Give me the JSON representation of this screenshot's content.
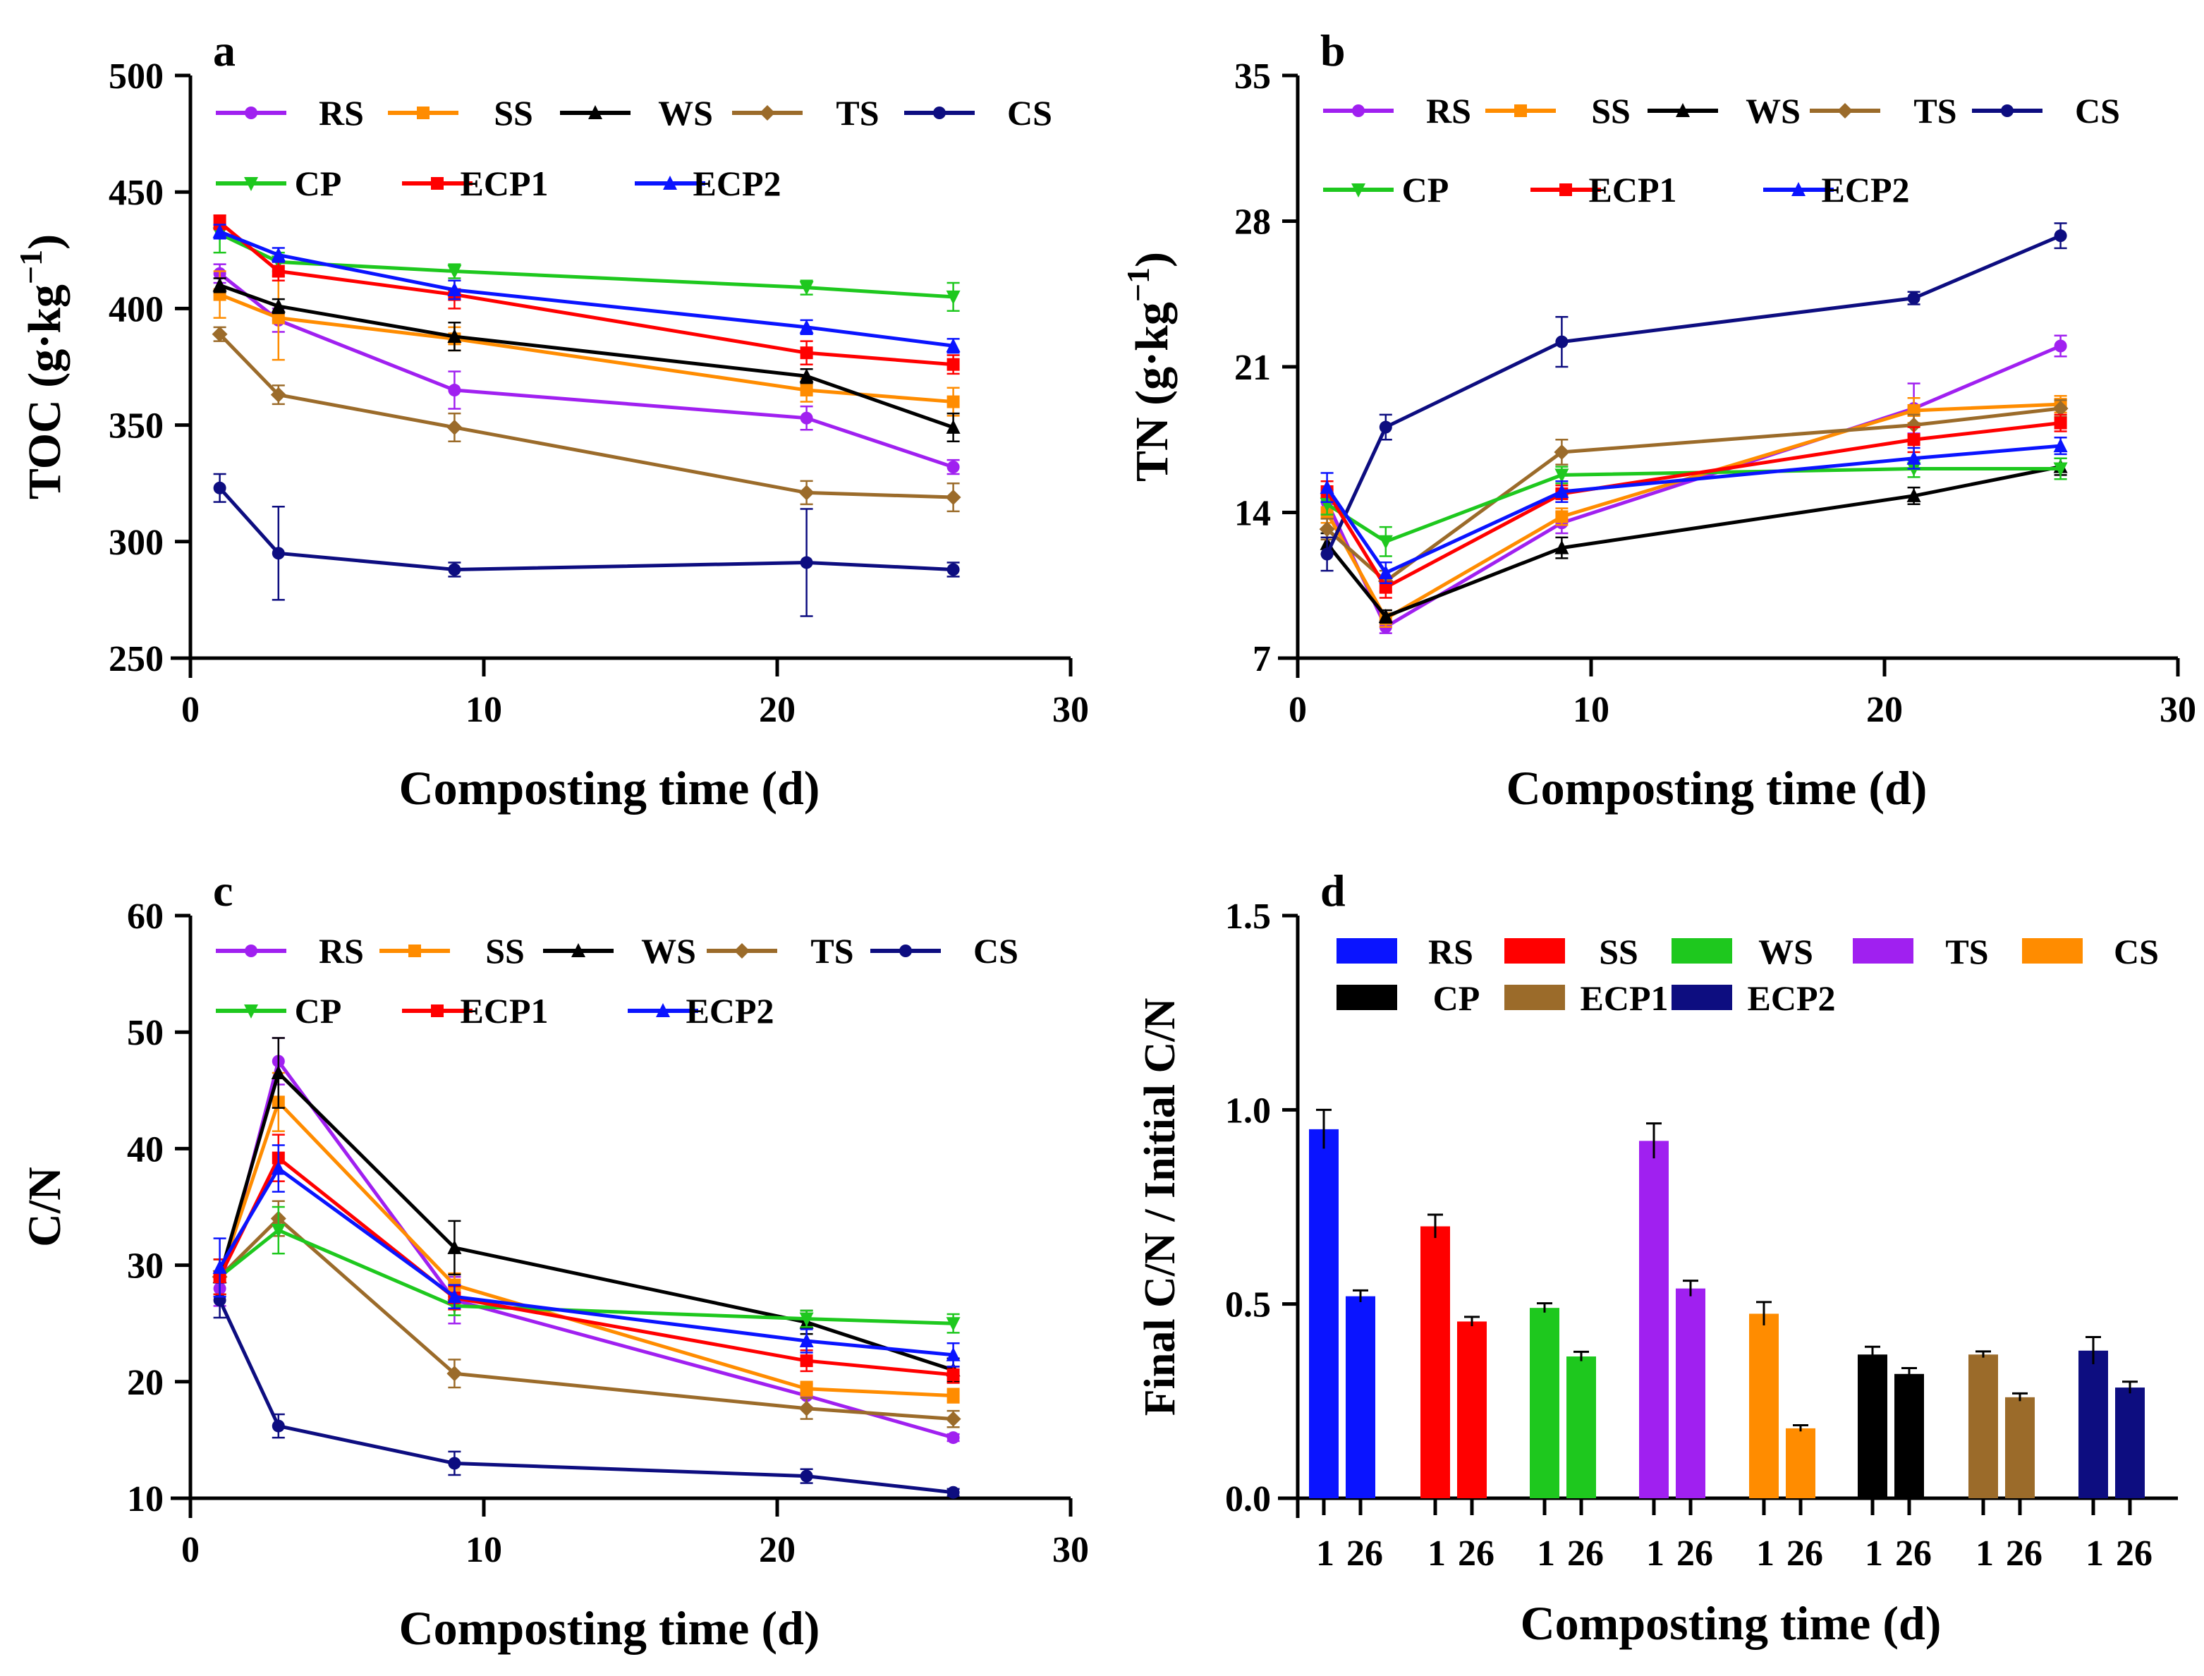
{
  "figure": {
    "panels": [
      "a",
      "b",
      "c",
      "d"
    ]
  },
  "chart_data": [
    {
      "id": "a",
      "type": "line",
      "panel_label": "a",
      "xlabel": "Composting time (d)",
      "ylabel": "TOC (g·kg",
      "ylabel_sup": "−1",
      "ylabel_close": ")",
      "xlim": [
        0,
        30
      ],
      "ylim": [
        250,
        500
      ],
      "xticks": [
        "0",
        "10",
        "20",
        "30"
      ],
      "yticks": [
        "250",
        "300",
        "350",
        "400",
        "450",
        "500"
      ],
      "x": [
        1,
        3,
        9,
        21,
        26
      ],
      "legend_rows": [
        [
          "RS",
          "SS",
          "WS",
          "TS",
          "CS"
        ],
        [
          "CP",
          "ECP1",
          "ECP2"
        ]
      ],
      "series": [
        {
          "name": "RS",
          "color": "#a020f0",
          "marker": "circle",
          "values": [
            415,
            395,
            365,
            353,
            332
          ],
          "errors": [
            4,
            5,
            8,
            5,
            3
          ]
        },
        {
          "name": "SS",
          "color": "#ff8c00",
          "marker": "square",
          "values": [
            406,
            396,
            387,
            365,
            360
          ],
          "errors": [
            10,
            18,
            5,
            5,
            6
          ]
        },
        {
          "name": "WS",
          "color": "#000000",
          "marker": "tri-up",
          "values": [
            410,
            401,
            388,
            371,
            349
          ],
          "errors": [
            3,
            3,
            6,
            3,
            6
          ]
        },
        {
          "name": "TS",
          "color": "#9b6b2a",
          "marker": "diamond",
          "values": [
            389,
            363,
            349,
            321,
            319
          ],
          "errors": [
            3,
            4,
            6,
            5,
            6
          ]
        },
        {
          "name": "CS",
          "color": "#0d0d80",
          "marker": "circle",
          "values": [
            323,
            295,
            288,
            291,
            288
          ],
          "errors": [
            6,
            20,
            3,
            23,
            3
          ]
        },
        {
          "name": "CP",
          "color": "#1ec81e",
          "marker": "tri-down",
          "values": [
            432,
            420,
            416,
            409,
            405
          ],
          "errors": [
            8,
            4,
            3,
            3,
            6
          ]
        },
        {
          "name": "ECP1",
          "color": "#ff0000",
          "marker": "square",
          "values": [
            437,
            416,
            406,
            381,
            376
          ],
          "errors": [
            3,
            4,
            6,
            5,
            4
          ]
        },
        {
          "name": "ECP2",
          "color": "#0a14ff",
          "marker": "tri-up",
          "values": [
            433,
            423,
            408,
            392,
            384
          ],
          "errors": [
            3,
            3,
            4,
            3,
            3
          ]
        }
      ]
    },
    {
      "id": "b",
      "type": "line",
      "panel_label": "b",
      "xlabel": "Composting time (d)",
      "ylabel": "TN (g·kg",
      "ylabel_sup": "−1",
      "ylabel_close": ")",
      "xlim": [
        0,
        30
      ],
      "ylim": [
        7,
        35
      ],
      "xticks": [
        "0",
        "10",
        "20",
        "30"
      ],
      "yticks": [
        "7",
        "14",
        "21",
        "28",
        "35"
      ],
      "x": [
        1,
        3,
        9,
        21,
        26
      ],
      "legend_rows": [
        [
          "RS",
          "SS",
          "WS",
          "TS",
          "CS"
        ],
        [
          "CP",
          "ECP1",
          "ECP2"
        ]
      ],
      "series": [
        {
          "name": "RS",
          "color": "#a020f0",
          "marker": "circle",
          "values": [
            14.5,
            8.5,
            13.5,
            19,
            22
          ],
          "errors": [
            0.6,
            0.3,
            0.5,
            1.2,
            0.5
          ]
        },
        {
          "name": "SS",
          "color": "#ff8c00",
          "marker": "square",
          "values": [
            14,
            8.9,
            13.8,
            18.9,
            19.2
          ],
          "errors": [
            0.5,
            0.4,
            0.4,
            0.6,
            0.4
          ]
        },
        {
          "name": "WS",
          "color": "#000000",
          "marker": "tri-up",
          "values": [
            12.5,
            9.0,
            12.3,
            14.8,
            16.2
          ],
          "errors": [
            0.5,
            0.3,
            0.5,
            0.4,
            0.4
          ]
        },
        {
          "name": "TS",
          "color": "#9b6b2a",
          "marker": "diamond",
          "values": [
            13.2,
            10.7,
            16.9,
            18.2,
            19
          ],
          "errors": [
            0.5,
            0.5,
            0.6,
            0.5,
            0.4
          ]
        },
        {
          "name": "CS",
          "color": "#0d0d80",
          "marker": "circle",
          "values": [
            12,
            18.1,
            22.2,
            24.3,
            27.3
          ],
          "errors": [
            0.8,
            0.6,
            1.2,
            0.3,
            0.6
          ]
        },
        {
          "name": "CP",
          "color": "#1ec81e",
          "marker": "tri-down",
          "values": [
            14.4,
            12.6,
            15.8,
            16.1,
            16.1
          ],
          "errors": [
            0.5,
            0.7,
            0.4,
            0.4,
            0.5
          ]
        },
        {
          "name": "ECP1",
          "color": "#ff0000",
          "marker": "square",
          "values": [
            15,
            10.4,
            14.9,
            17.5,
            18.3
          ],
          "errors": [
            0.5,
            0.5,
            0.4,
            0.6,
            0.4
          ]
        },
        {
          "name": "ECP2",
          "color": "#0a14ff",
          "marker": "tri-up",
          "values": [
            15.2,
            11.1,
            15,
            16.6,
            17.2
          ],
          "errors": [
            0.7,
            0.5,
            0.5,
            0.5,
            0.4
          ]
        }
      ]
    },
    {
      "id": "c",
      "type": "line",
      "panel_label": "c",
      "xlabel": "Composting time (d)",
      "ylabel": "C/N",
      "ylabel_sup": "",
      "ylabel_close": "",
      "xlim": [
        0,
        30
      ],
      "ylim": [
        10,
        60
      ],
      "xticks": [
        "0",
        "10",
        "20",
        "30"
      ],
      "yticks": [
        "10",
        "20",
        "30",
        "40",
        "50",
        "60"
      ],
      "x": [
        1,
        3,
        9,
        21,
        26
      ],
      "legend_rows": [
        [
          "RS",
          "SS",
          "WS",
          "TS",
          "CS"
        ],
        [
          "CP",
          "ECP1",
          "ECP2"
        ]
      ],
      "series": [
        {
          "name": "RS",
          "color": "#a020f0",
          "marker": "circle",
          "values": [
            28,
            47.5,
            27,
            18.8,
            15.2
          ],
          "errors": [
            1.5,
            2,
            2,
            1,
            0.3
          ]
        },
        {
          "name": "SS",
          "color": "#ff8c00",
          "marker": "square",
          "values": [
            29,
            44,
            28.3,
            19.4,
            18.8
          ],
          "errors": [
            1.5,
            2.5,
            1,
            0.6,
            0.6
          ]
        },
        {
          "name": "WS",
          "color": "#000000",
          "marker": "tri-up",
          "values": [
            29,
            46.5,
            31.5,
            25.1,
            21
          ],
          "errors": [
            1.5,
            3,
            2.3,
            1,
            1
          ]
        },
        {
          "name": "TS",
          "color": "#9b6b2a",
          "marker": "diamond",
          "values": [
            29,
            34,
            20.7,
            17.7,
            16.8
          ],
          "errors": [
            1.5,
            1.5,
            1.2,
            0.9,
            0.7
          ]
        },
        {
          "name": "CS",
          "color": "#0d0d80",
          "marker": "circle",
          "values": [
            27,
            16.2,
            13,
            11.9,
            10.5
          ],
          "errors": [
            1.5,
            1,
            1,
            0.6,
            0.3
          ]
        },
        {
          "name": "CP",
          "color": "#1ec81e",
          "marker": "tri-down",
          "values": [
            29,
            33,
            26.5,
            25.4,
            25
          ],
          "errors": [
            1.5,
            2,
            0.8,
            0.7,
            0.8
          ]
        },
        {
          "name": "ECP1",
          "color": "#ff0000",
          "marker": "square",
          "values": [
            29,
            39.2,
            27.2,
            21.8,
            20.6
          ],
          "errors": [
            1.5,
            2,
            1,
            0.9,
            0.7
          ]
        },
        {
          "name": "ECP2",
          "color": "#0a14ff",
          "marker": "tri-up",
          "values": [
            29.8,
            38.3,
            27.3,
            23.5,
            22.3
          ],
          "errors": [
            2.5,
            2,
            1,
            1,
            1
          ]
        }
      ]
    },
    {
      "id": "d",
      "type": "bar",
      "panel_label": "d",
      "xlabel": "Composting time (d)",
      "ylabel": "Final C/N / Initial C/N",
      "ylim": [
        0,
        1.5
      ],
      "yticks": [
        "0.0",
        "0.5",
        "1.0",
        "1.5"
      ],
      "bar_labels": [
        "1",
        "26"
      ],
      "legend_rows": [
        [
          "RS",
          "SS",
          "WS",
          "TS",
          "CS"
        ],
        [
          "CP",
          "ECP1",
          "ECP2"
        ]
      ],
      "groups": [
        {
          "name": "RS",
          "color": "#0a14ff",
          "values": [
            0.95,
            0.52
          ],
          "errors": [
            0.05,
            0.015
          ]
        },
        {
          "name": "SS",
          "color": "#ff0000",
          "values": [
            0.7,
            0.455
          ],
          "errors": [
            0.03,
            0.012
          ]
        },
        {
          "name": "WS",
          "color": "#1ec81e",
          "values": [
            0.49,
            0.365
          ],
          "errors": [
            0.012,
            0.012
          ]
        },
        {
          "name": "TS",
          "color": "#a020f0",
          "values": [
            0.92,
            0.54
          ],
          "errors": [
            0.045,
            0.02
          ]
        },
        {
          "name": "CS",
          "color": "#ff8c00",
          "values": [
            0.475,
            0.18
          ],
          "errors": [
            0.03,
            0.008
          ]
        },
        {
          "name": "CP",
          "color": "#000000",
          "values": [
            0.37,
            0.32
          ],
          "errors": [
            0.02,
            0.015
          ]
        },
        {
          "name": "ECP1",
          "color": "#9b6b2a",
          "values": [
            0.37,
            0.26
          ],
          "errors": [
            0.008,
            0.01
          ]
        },
        {
          "name": "ECP2",
          "color": "#0d0d80",
          "values": [
            0.38,
            0.285
          ],
          "errors": [
            0.035,
            0.015
          ]
        }
      ]
    }
  ]
}
